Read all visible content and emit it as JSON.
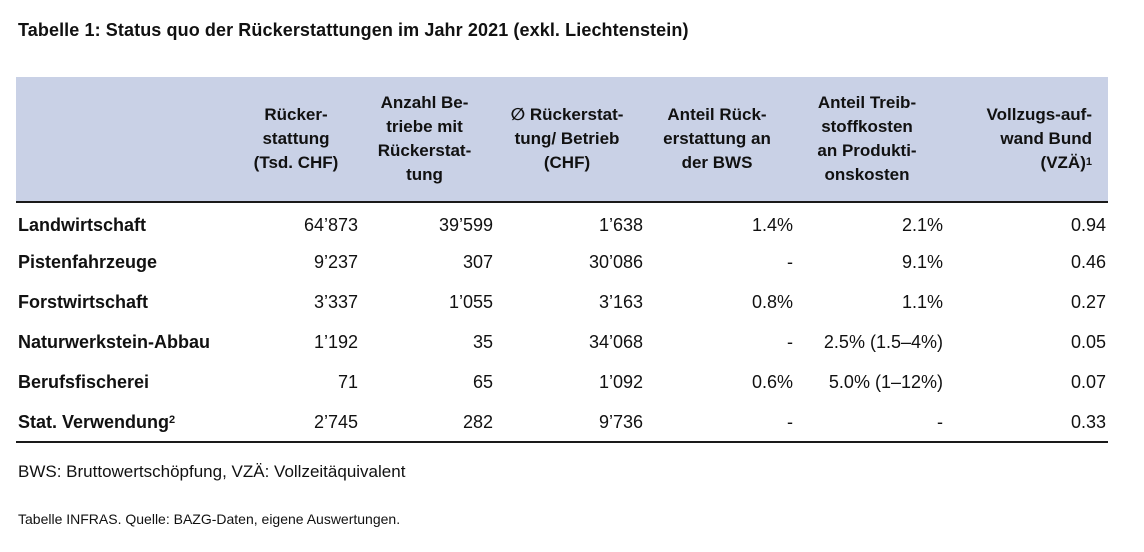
{
  "caption": "Tabelle 1: Status quo der Rückerstattungen im Jahr 2021 (exkl. Liechtenstein)",
  "table": {
    "headers": [
      "",
      "Rücker-\nstattung\n(Tsd. CHF)",
      "Anzahl Be-\ntriebe mit\nRückerstat-\ntung",
      "∅ Rückerstat-\ntung/ Betrieb\n(CHF)",
      "Anteil Rück-\nerstattung an\nder BWS",
      "Anteil Treib-\nstoffkosten\nan Produkti-\nonskosten",
      "Vollzugs-auf-\nwand Bund\n(VZÄ)"
    ],
    "header_footnote": "1",
    "rows": [
      {
        "label": "Landwirtschaft",
        "values": [
          "64’873",
          "39’599",
          "1’638",
          "1.4%",
          "2.1%",
          "0.94"
        ]
      },
      {
        "label": "Pistenfahrzeuge",
        "values": [
          "9’237",
          "307",
          "30’086",
          "-",
          "9.1%",
          "0.46"
        ]
      },
      {
        "label": "Forstwirtschaft",
        "values": [
          "3’337",
          "1’055",
          "3’163",
          "0.8%",
          "1.1%",
          "0.27"
        ]
      },
      {
        "label": "Naturwerkstein-Abbau",
        "values": [
          "1’192",
          "35",
          "34’068",
          "-",
          "2.5% (1.5–4%)",
          "0.05"
        ]
      },
      {
        "label": "Berufsfischerei",
        "values": [
          "71",
          "65",
          "1’092",
          "0.6%",
          "5.0% (1–12%)",
          "0.07"
        ]
      },
      {
        "label": "Stat. Verwendung",
        "footnote": "2",
        "values": [
          "2’745",
          "282",
          "9’736",
          "-",
          "-",
          "0.33"
        ]
      }
    ]
  },
  "note": "BWS: Bruttowertschöpfung, VZÄ: Vollzeitäquivalent",
  "source": "Tabelle INFRAS. Quelle: BAZG-Daten, eigene Auswertungen."
}
